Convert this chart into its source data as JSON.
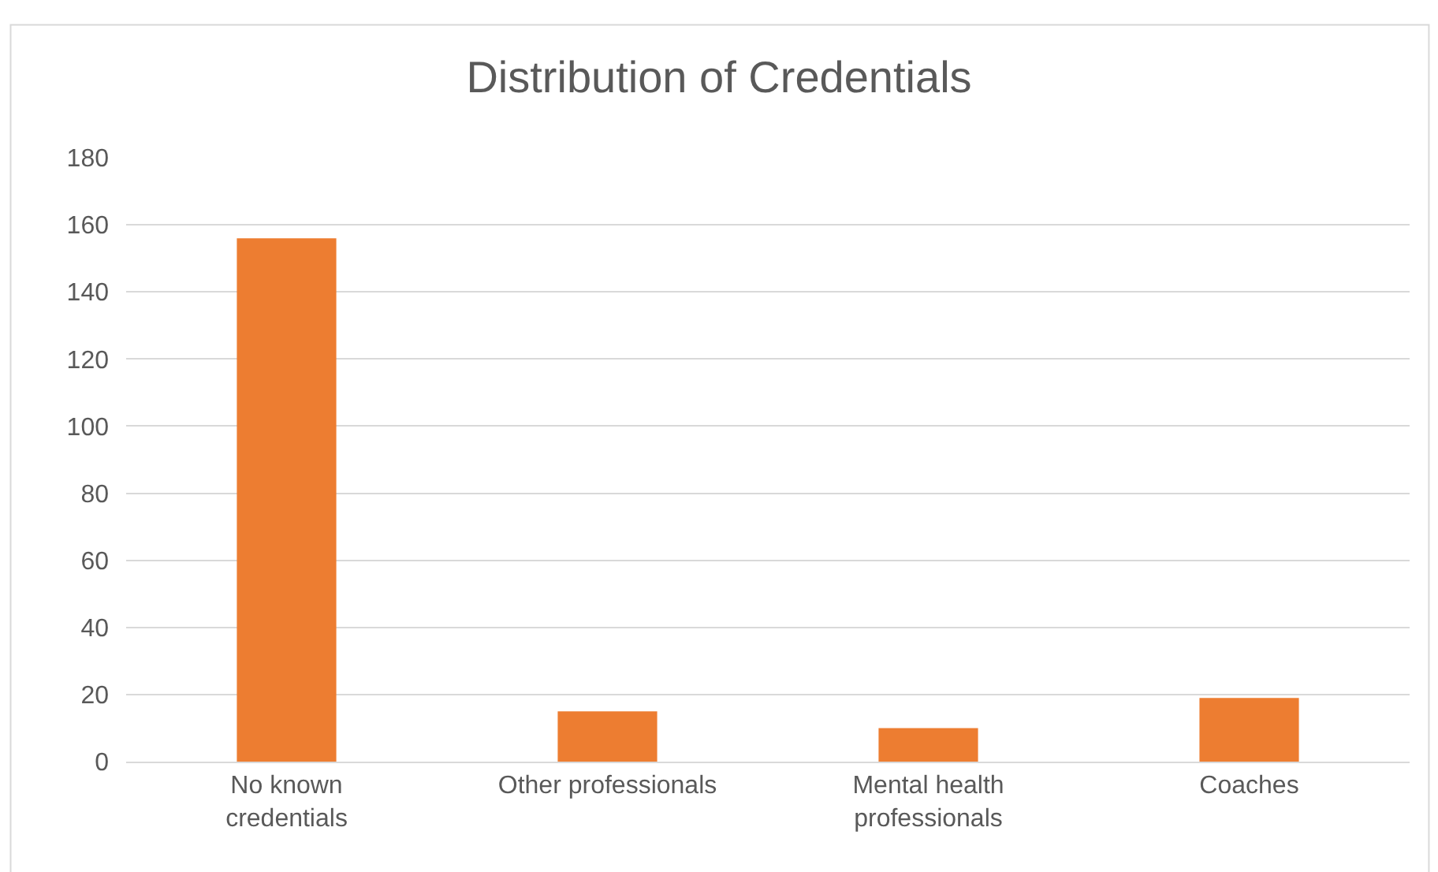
{
  "chart_data": {
    "type": "bar",
    "title": "Distribution of Credentials",
    "categories": [
      "No known credentials",
      "Other professionals",
      "Mental health professionals",
      "Coaches"
    ],
    "values": [
      156,
      15,
      10,
      19
    ],
    "color": "#ed7d31",
    "ylim": [
      0,
      180
    ],
    "yticks": [
      0,
      20,
      40,
      60,
      80,
      100,
      120,
      140,
      160,
      180
    ],
    "grid": "y",
    "legend": false
  }
}
